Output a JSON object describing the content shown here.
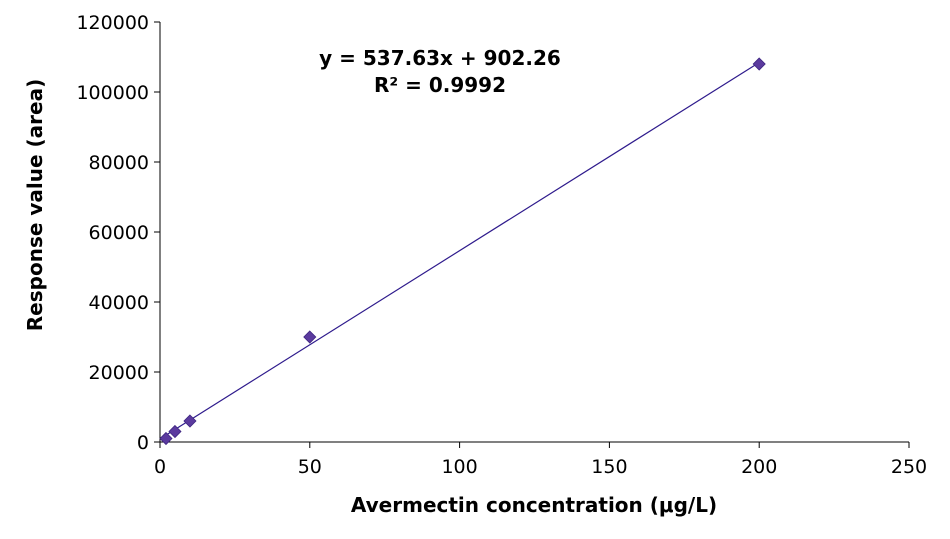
{
  "chart_data": {
    "type": "scatter",
    "xlabel": "Avermectin concentration (μg/L)",
    "ylabel": "Response value (area)",
    "xlim": [
      0,
      250
    ],
    "ylim": [
      0,
      120000
    ],
    "x_ticks": [
      "0",
      "50",
      "100",
      "150",
      "200",
      "250"
    ],
    "y_ticks": [
      "0",
      "20000",
      "40000",
      "60000",
      "80000",
      "100000",
      "120000"
    ],
    "grid": false,
    "legend": "none",
    "series": [
      {
        "marker": "diamond",
        "color": "#5b3a9e",
        "points": [
          {
            "x": 2,
            "y": 1000
          },
          {
            "x": 5,
            "y": 3000
          },
          {
            "x": 10,
            "y": 6000
          },
          {
            "x": 50,
            "y": 30000
          },
          {
            "x": 200,
            "y": 108000
          }
        ]
      }
    ],
    "trendline": {
      "type": "linear",
      "slope": 537.63,
      "intercept": 902.26,
      "color": "#2e1a8c",
      "x_range": [
        2,
        200
      ]
    },
    "annotations": {
      "equation": "y = 537.63x + 902.26",
      "r_squared": "R² = 0.9992"
    }
  }
}
